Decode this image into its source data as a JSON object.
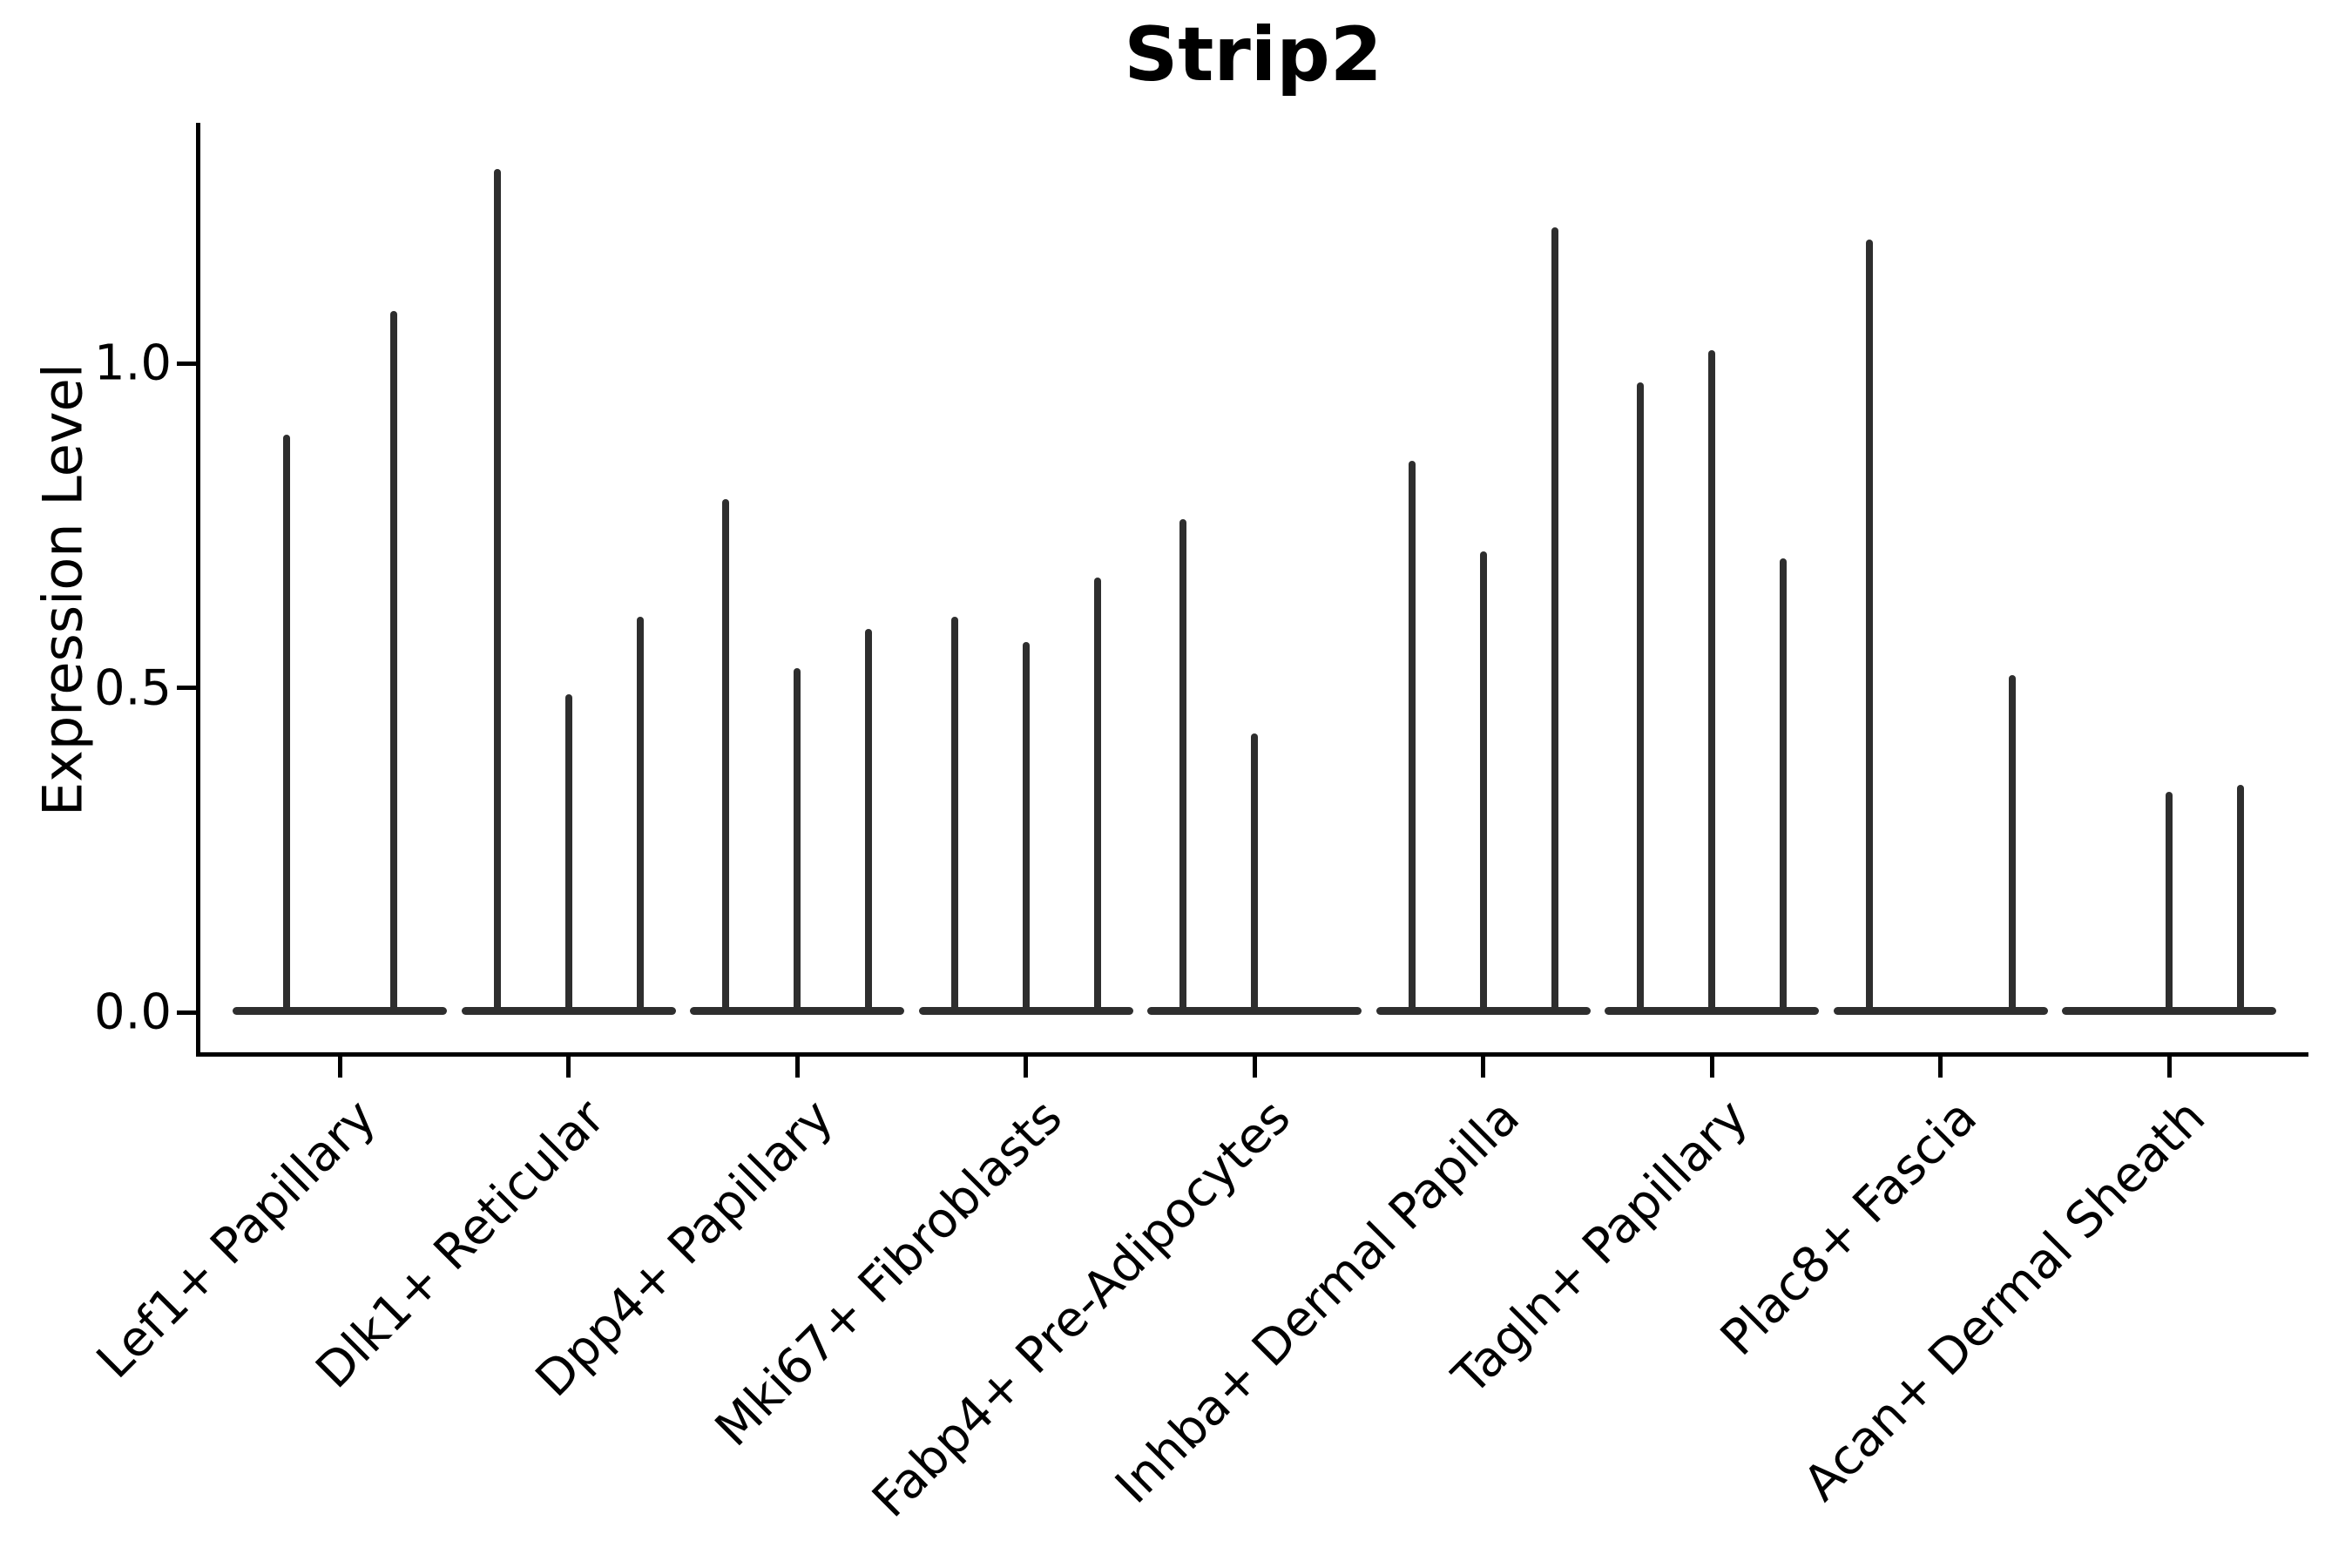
{
  "chart_data": {
    "type": "violin",
    "title": "Strip2",
    "ylabel": "Expression Level",
    "xlabel": "",
    "grid": false,
    "legend": "none",
    "ylim": [
      -0.05,
      1.38
    ],
    "ytick_values": [
      0.0,
      0.5,
      1.0
    ],
    "ytick_labels": [
      "0.0",
      "0.5",
      "1.0"
    ],
    "categories": [
      "Lef1+ Papillary",
      "Dlk1+ Reticular",
      "Dpp4+ Papillary",
      "Mki67+ Fibroblasts",
      "Fabp4+ Pre-Adipocytes",
      "Inhba+ Dermal Papilla",
      "Tagln+ Papillary",
      "Plac8+ Fascia",
      "Acan+ Dermal Sheath"
    ],
    "groups": [
      {
        "label": "Lef1+ Papillary",
        "violin_maxima": [
          0.89,
          1.08
        ]
      },
      {
        "label": "Dlk1+ Reticular",
        "violin_maxima": [
          1.3,
          0.49,
          0.61
        ]
      },
      {
        "label": "Dpp4+ Papillary",
        "violin_maxima": [
          0.79,
          0.53,
          0.59
        ]
      },
      {
        "label": "Mki67+ Fibroblasts",
        "violin_maxima": [
          0.61,
          0.57,
          0.67
        ]
      },
      {
        "label": "Fabp4+ Pre-Adipocytes",
        "violin_maxima": [
          0.76,
          0.43,
          0.0
        ]
      },
      {
        "label": "Inhba+ Dermal Papilla",
        "violin_maxima": [
          0.85,
          0.71,
          1.21
        ]
      },
      {
        "label": "Tagln+ Papillary",
        "violin_maxima": [
          0.97,
          1.02,
          0.7
        ]
      },
      {
        "label": "Plac8+ Fascia",
        "violin_maxima": [
          1.19,
          0.0,
          0.52
        ]
      },
      {
        "label": "Acan+ Dermal Sheath",
        "violin_maxima": [
          0.0,
          0.34,
          0.35
        ]
      }
    ],
    "colors": {
      "violin": "#2e2e2e",
      "axis": "#000000",
      "text": "#000000",
      "background": "#ffffff"
    }
  }
}
